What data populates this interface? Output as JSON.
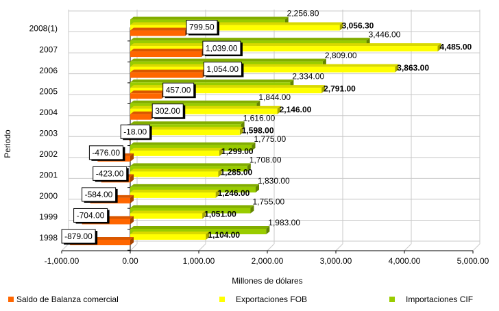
{
  "chart_data": {
    "type": "bar",
    "orientation": "horizontal",
    "ylabel": "Periodo",
    "xlabel": "Millones de dólares",
    "categories": [
      "1998",
      "1999",
      "2000",
      "2001",
      "2002",
      "2003",
      "2004",
      "2005",
      "2006",
      "2007",
      "2008(1)"
    ],
    "series": [
      {
        "name": "Saldo de Balanza comercial",
        "color": "#ff6600",
        "values": [
          -879,
          -704,
          -584,
          -423,
          -476,
          -18,
          302,
          457,
          1054,
          1039,
          799.5
        ],
        "value_labels": [
          "-879.00",
          "-704.00",
          "-584.00",
          "-423.00",
          "-476.00",
          "-18.00",
          "302.00",
          "457.00",
          "1,054.00",
          "1,039.00",
          "799.50"
        ]
      },
      {
        "name": "Exportaciones FOB",
        "color": "#ffff00",
        "values": [
          1104,
          1051,
          1246,
          1285,
          1299,
          1598,
          2146,
          2791,
          3863,
          4485,
          3056.3
        ],
        "value_labels": [
          "1,104.00",
          "1,051.00",
          "1,246.00",
          "1,285.00",
          "1,299.00",
          "1,598.00",
          "2,146.00",
          "2,791.00",
          "3,863.00",
          "4,485.00",
          "3,056.30"
        ]
      },
      {
        "name": "Importaciones CIF",
        "color": "#99cc00",
        "values": [
          1983,
          1755,
          1830,
          1708,
          1775,
          1616,
          1844,
          2334,
          2809,
          3446,
          2256.8
        ],
        "value_labels": [
          "1,983.00",
          "1,755.00",
          "1,830.00",
          "1,708.00",
          "1,775.00",
          "1,616.00",
          "1,844.00",
          "2,334.00",
          "2,809.00",
          "3,446.00",
          "2,256.80"
        ]
      }
    ],
    "xlim": [
      -1000,
      5000
    ],
    "xticks": [
      {
        "value": -1000,
        "label": "-1,000.00"
      },
      {
        "value": 0,
        "label": "0.00"
      },
      {
        "value": 1000,
        "label": "1,000.00"
      },
      {
        "value": 2000,
        "label": "2,000.00"
      },
      {
        "value": 3000,
        "label": "3,000.00"
      },
      {
        "value": 4000,
        "label": "4,000.00"
      },
      {
        "value": 5000,
        "label": "5,000.00"
      }
    ],
    "grid": true,
    "legend": "bottom"
  }
}
